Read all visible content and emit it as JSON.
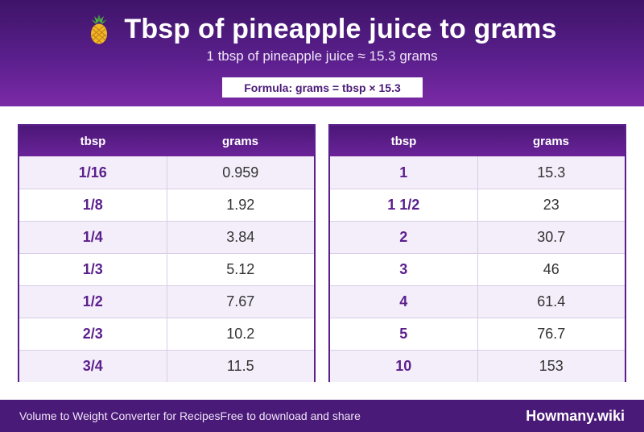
{
  "header": {
    "icon": "pineapple-icon",
    "title": "Tbsp of pineapple juice to grams",
    "subtitle": "1 tbsp of pineapple juice ≈ 15.3 grams",
    "formula": "Formula: grams = tbsp × 15.3"
  },
  "tables": {
    "left": {
      "headers": [
        "tbsp",
        "grams"
      ],
      "rows": [
        [
          "1/16",
          "0.959"
        ],
        [
          "1/8",
          "1.92"
        ],
        [
          "1/4",
          "3.84"
        ],
        [
          "1/3",
          "5.12"
        ],
        [
          "1/2",
          "7.67"
        ],
        [
          "2/3",
          "10.2"
        ],
        [
          "3/4",
          "11.5"
        ]
      ]
    },
    "right": {
      "headers": [
        "tbsp",
        "grams"
      ],
      "rows": [
        [
          "1",
          "15.3"
        ],
        [
          "1 1/2",
          "23"
        ],
        [
          "2",
          "30.7"
        ],
        [
          "3",
          "46"
        ],
        [
          "4",
          "61.4"
        ],
        [
          "5",
          "76.7"
        ],
        [
          "10",
          "153"
        ]
      ]
    }
  },
  "footer": {
    "left": "Volume to Weight Converter for Recipes",
    "middle": "Free to download and share",
    "brand": "Howmany.wiki"
  },
  "colors": {
    "primary": "#5a1f8c",
    "header_dark": "#3e1468",
    "row_alt": "#f4eefa"
  }
}
